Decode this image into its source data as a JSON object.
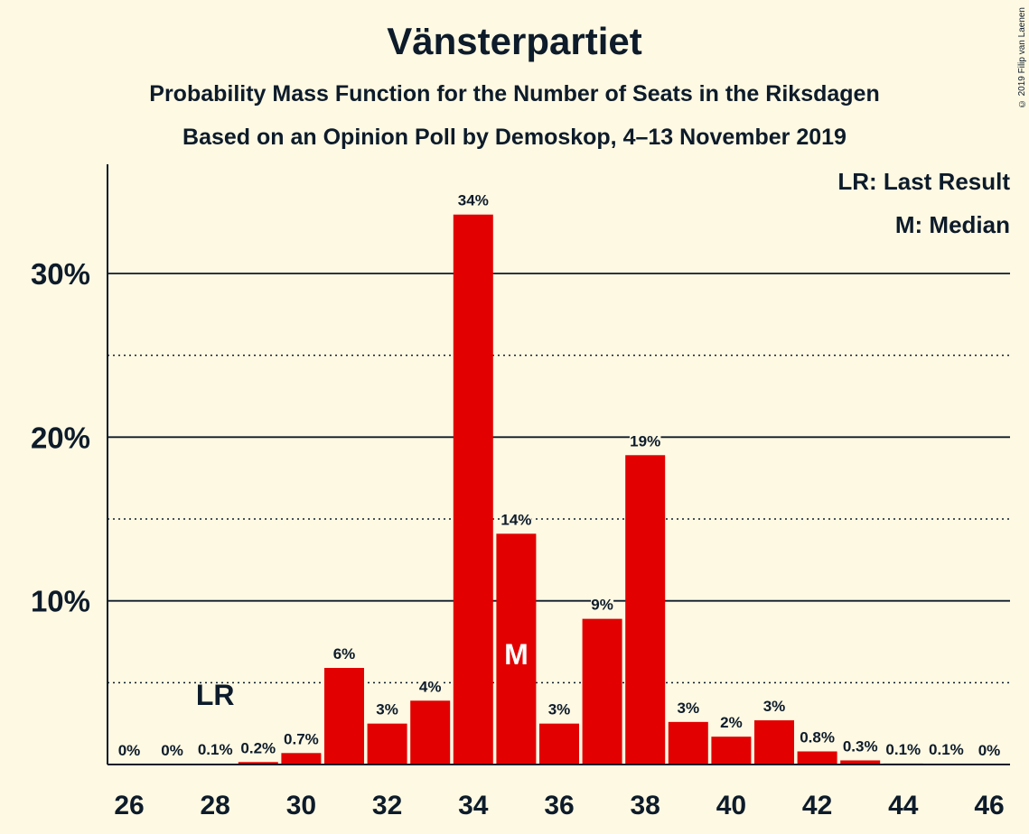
{
  "header": {
    "title": "Vänsterpartiet",
    "subtitle": "Probability Mass Function for the Number of Seats in the Riksdagen",
    "subtitle2": "Based on an Opinion Poll by Demoskop, 4–13 November 2019",
    "copyright": "© 2019 Filip van Laenen"
  },
  "legend": {
    "last_result": "LR: Last Result",
    "median": "M: Median"
  },
  "colors": {
    "background": "#fef9e3",
    "bar": "#e20000",
    "text": "#0d1b2a"
  },
  "chart_data": {
    "type": "bar",
    "title": "Vänsterpartiet",
    "x": [
      26,
      27,
      28,
      29,
      30,
      31,
      32,
      33,
      34,
      35,
      36,
      37,
      38,
      39,
      40,
      41,
      42,
      43,
      44,
      45,
      46
    ],
    "values": [
      0,
      0,
      0.05,
      0.15,
      0.7,
      5.9,
      2.5,
      3.9,
      33.6,
      14.1,
      2.5,
      8.9,
      18.9,
      2.6,
      1.7,
      2.7,
      0.8,
      0.25,
      0.06,
      0.05,
      0
    ],
    "labels": [
      "0%",
      "0%",
      "0.1%",
      "0.2%",
      "0.7%",
      "6%",
      "3%",
      "4%",
      "34%",
      "14%",
      "3%",
      "9%",
      "19%",
      "3%",
      "2%",
      "3%",
      "0.8%",
      "0.3%",
      "0.1%",
      "0.1%",
      "0%"
    ],
    "x_ticks": [
      26,
      28,
      30,
      32,
      34,
      36,
      38,
      40,
      42,
      44,
      46
    ],
    "y_ticks": [
      {
        "value": 10,
        "label": "10%"
      },
      {
        "value": 20,
        "label": "20%"
      },
      {
        "value": 30,
        "label": "30%"
      }
    ],
    "y_minor_gridlines": [
      5,
      15,
      25
    ],
    "ylim": [
      0,
      36.5
    ],
    "last_result": {
      "seat": 28,
      "label": "LR"
    },
    "median": {
      "seat": 35,
      "label": "M"
    },
    "legend_position": "top-right",
    "grid": true
  }
}
